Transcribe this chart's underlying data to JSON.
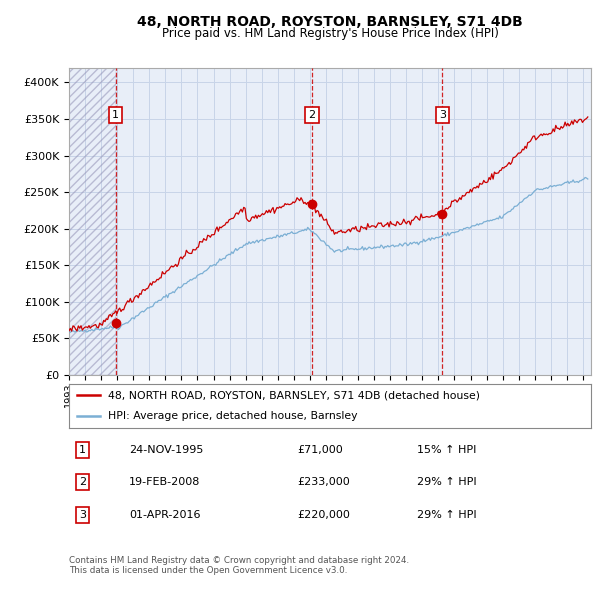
{
  "title": "48, NORTH ROAD, ROYSTON, BARNSLEY, S71 4DB",
  "subtitle": "Price paid vs. HM Land Registry's House Price Index (HPI)",
  "xlim": [
    1993.0,
    2025.5
  ],
  "ylim": [
    0,
    420000
  ],
  "yticks": [
    0,
    50000,
    100000,
    150000,
    200000,
    250000,
    300000,
    350000,
    400000
  ],
  "ytick_labels": [
    "£0",
    "£50K",
    "£100K",
    "£150K",
    "£200K",
    "£250K",
    "£300K",
    "£350K",
    "£400K"
  ],
  "sale_color": "#cc0000",
  "hpi_color": "#7bafd4",
  "grid_color": "#c8d4e8",
  "bg_color": "#e8eef8",
  "sales": [
    {
      "date_year": 1995.9,
      "price": 71000,
      "label": "1"
    },
    {
      "date_year": 2008.13,
      "price": 233000,
      "label": "2"
    },
    {
      "date_year": 2016.25,
      "price": 220000,
      "label": "3"
    }
  ],
  "vlines": [
    1995.9,
    2008.13,
    2016.25
  ],
  "legend_entries": [
    "48, NORTH ROAD, ROYSTON, BARNSLEY, S71 4DB (detached house)",
    "HPI: Average price, detached house, Barnsley"
  ],
  "table_rows": [
    {
      "num": "1",
      "date": "24-NOV-1995",
      "price": "£71,000",
      "hpi": "15% ↑ HPI"
    },
    {
      "num": "2",
      "date": "19-FEB-2008",
      "price": "£233,000",
      "hpi": "29% ↑ HPI"
    },
    {
      "num": "3",
      "date": "01-APR-2016",
      "price": "£220,000",
      "hpi": "29% ↑ HPI"
    }
  ],
  "footnote": "Contains HM Land Registry data © Crown copyright and database right 2024.\nThis data is licensed under the Open Government Licence v3.0.",
  "hatch_end_year": 1995.9
}
